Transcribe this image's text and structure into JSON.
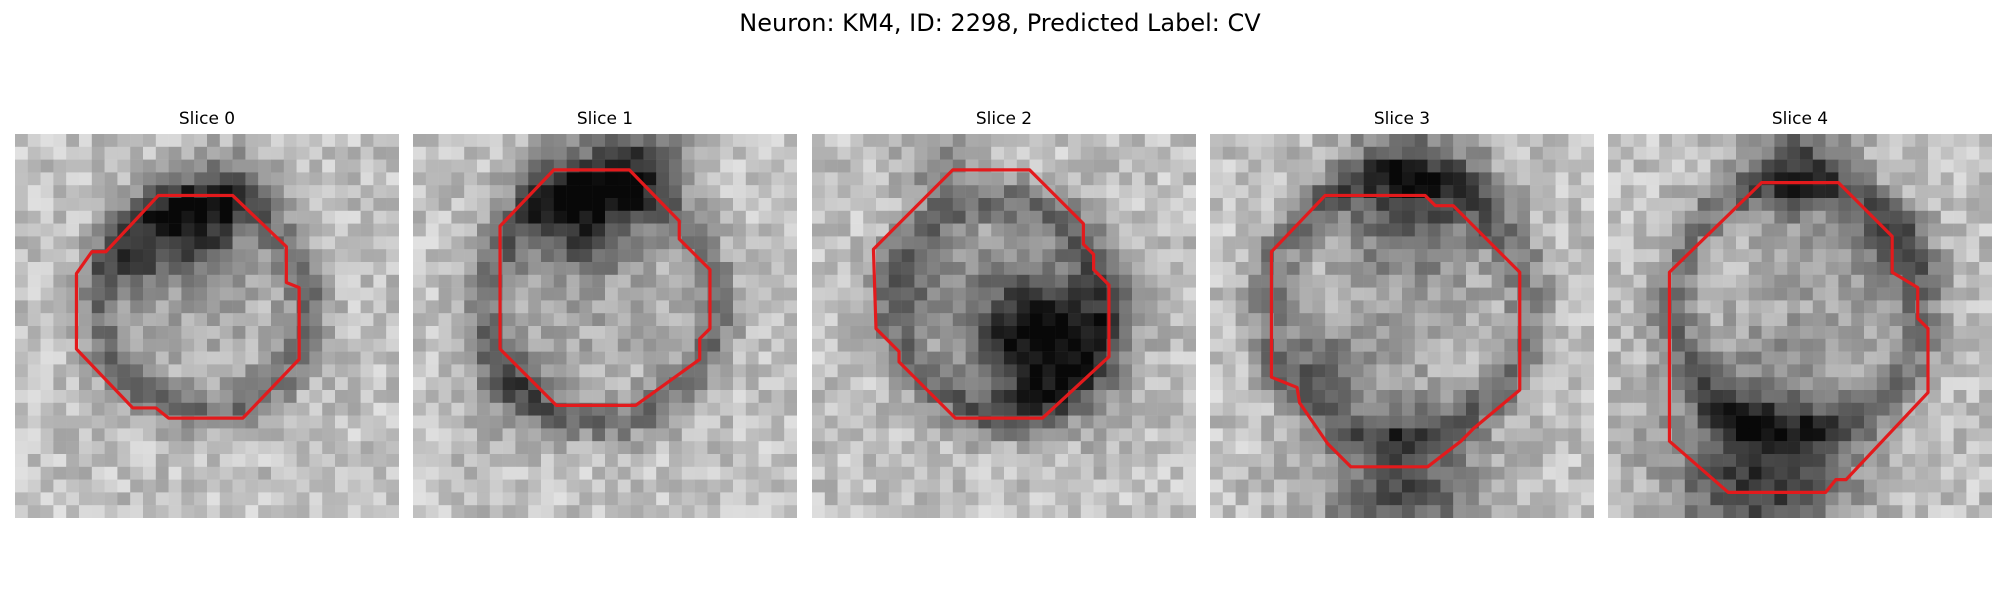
{
  "figure": {
    "title": "Neuron: KM4, ID: 2298, Predicted Label: CV",
    "outline_color": "#e31a1c"
  },
  "panels": [
    {
      "title": "Slice 0"
    },
    {
      "title": "Slice 1"
    },
    {
      "title": "Slice 2"
    },
    {
      "title": "Slice 3"
    },
    {
      "title": "Slice 4"
    }
  ]
}
